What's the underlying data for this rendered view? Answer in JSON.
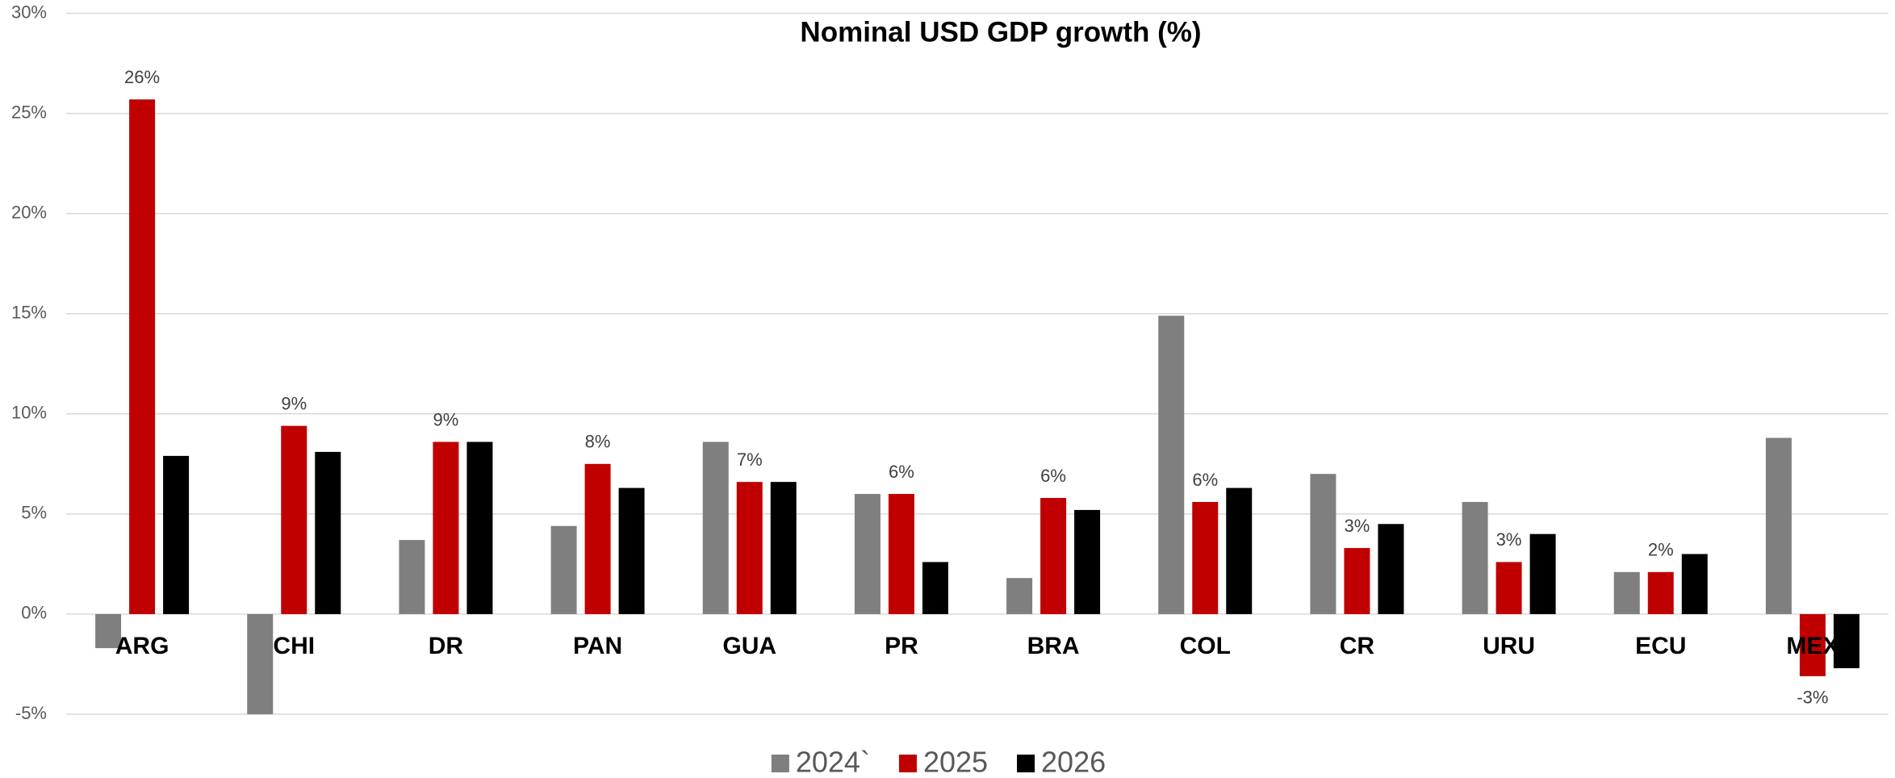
{
  "chart_data": {
    "type": "bar",
    "title": "Nominal USD GDP growth (%)",
    "categories": [
      "ARG",
      "CHI",
      "DR",
      "PAN",
      "GUA",
      "PR",
      "BRA",
      "COL",
      "CR",
      "URU",
      "ECU",
      "MEX"
    ],
    "series": [
      {
        "name": "2024`",
        "color": "#7f7f7f",
        "values": [
          -1.7,
          -5.0,
          3.7,
          4.4,
          8.6,
          6.0,
          1.8,
          14.9,
          7.0,
          5.6,
          2.1,
          8.8
        ]
      },
      {
        "name": "2025",
        "color": "#c00000",
        "values": [
          25.7,
          9.4,
          8.6,
          7.5,
          6.6,
          6.0,
          5.8,
          5.6,
          3.3,
          2.6,
          2.1,
          -3.1
        ],
        "value_labels": [
          "26%",
          "9%",
          "9%",
          "8%",
          "7%",
          "6%",
          "6%",
          "6%",
          "3%",
          "3%",
          "2%",
          "-3%"
        ]
      },
      {
        "name": "2026",
        "color": "#000000",
        "values": [
          7.9,
          8.1,
          8.6,
          6.3,
          6.6,
          2.6,
          5.2,
          6.3,
          4.5,
          4.0,
          3.0,
          -2.7
        ]
      }
    ],
    "ylim": [
      -5,
      30
    ],
    "yticks": [
      {
        "value": -5,
        "label": "-5%"
      },
      {
        "value": 0,
        "label": "0%"
      },
      {
        "value": 5,
        "label": "5%"
      },
      {
        "value": 10,
        "label": "10%"
      },
      {
        "value": 15,
        "label": "15%"
      },
      {
        "value": 20,
        "label": "20%"
      },
      {
        "value": 25,
        "label": "25%"
      },
      {
        "value": 30,
        "label": "30%"
      }
    ],
    "grid": true,
    "legend": "bottom"
  }
}
